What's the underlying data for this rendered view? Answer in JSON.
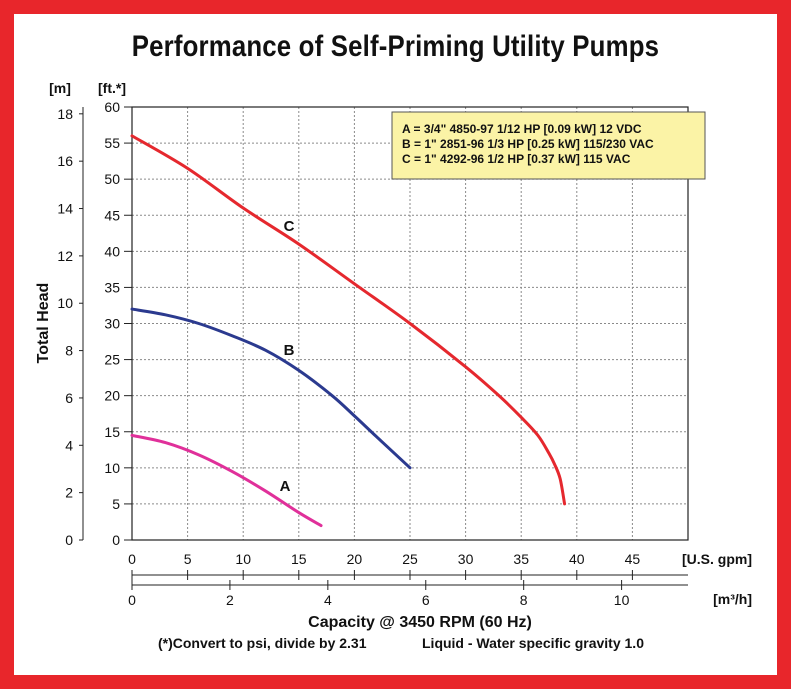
{
  "title": "Performance of Self-Priming Utility Pumps",
  "chart_data": {
    "type": "line",
    "title": "Performance of Self-Priming Utility Pumps",
    "xlabel": "Capacity @ 3450 RPM (60 Hz)",
    "ylabel": "Total Head",
    "x_unit": "[U.S. gpm]",
    "x2_unit": "[m³/h]",
    "y_unit": "[ft.*]",
    "y2_unit": "[m]",
    "xlim": [
      0,
      50
    ],
    "ylim": [
      0,
      60
    ],
    "x_ticks": [
      "0",
      "5",
      "10",
      "15",
      "20",
      "25",
      "30",
      "35",
      "40",
      "45"
    ],
    "x2_ticks": [
      "0",
      "2",
      "4",
      "6",
      "8",
      "10"
    ],
    "y_ticks": [
      "0",
      "5",
      "10",
      "15",
      "20",
      "25",
      "30",
      "35",
      "40",
      "45",
      "50",
      "55",
      "60"
    ],
    "y2_ticks": [
      "0",
      "2",
      "4",
      "6",
      "8",
      "10",
      "12",
      "14",
      "16",
      "18"
    ],
    "grid": true,
    "legend": {
      "placement": "top-right",
      "lines": [
        "A = 3/4\" 4850-97 1/12 HP [0.09 kW] 12 VDC",
        "B = 1\" 2851-96 1/3 HP [0.25 kW] 115/230 VAC",
        "C = 1\" 4292-96 1/2 HP [0.37 kW] 115 VAC"
      ]
    },
    "series": [
      {
        "name": "A",
        "color": "#e0309a",
        "x": [
          0,
          3,
          6,
          9,
          12,
          15,
          17
        ],
        "y": [
          14.5,
          13.5,
          11.8,
          9.5,
          6.8,
          3.8,
          2
        ]
      },
      {
        "name": "B",
        "color": "#2b3a8f",
        "x": [
          0,
          3,
          6,
          9,
          12,
          15,
          18,
          20,
          22,
          25
        ],
        "y": [
          32,
          31.2,
          30,
          28.3,
          26.3,
          23.5,
          20,
          17.2,
          14.3,
          10
        ]
      },
      {
        "name": "C",
        "color": "#e5282e",
        "x": [
          0,
          5,
          10,
          15,
          20,
          25,
          30,
          33,
          35,
          36.5,
          37.5,
          38,
          38.5,
          38.9
        ],
        "y": [
          56,
          51.5,
          46,
          41,
          35.5,
          30,
          24,
          20,
          17,
          14.5,
          12,
          10.5,
          8.5,
          5
        ]
      }
    ],
    "annotations": [
      "A",
      "B",
      "C"
    ]
  },
  "footnote": {
    "convert": "(*)Convert to psi, divide by 2.31",
    "liquid": "Liquid - Water specific gravity 1.0"
  }
}
